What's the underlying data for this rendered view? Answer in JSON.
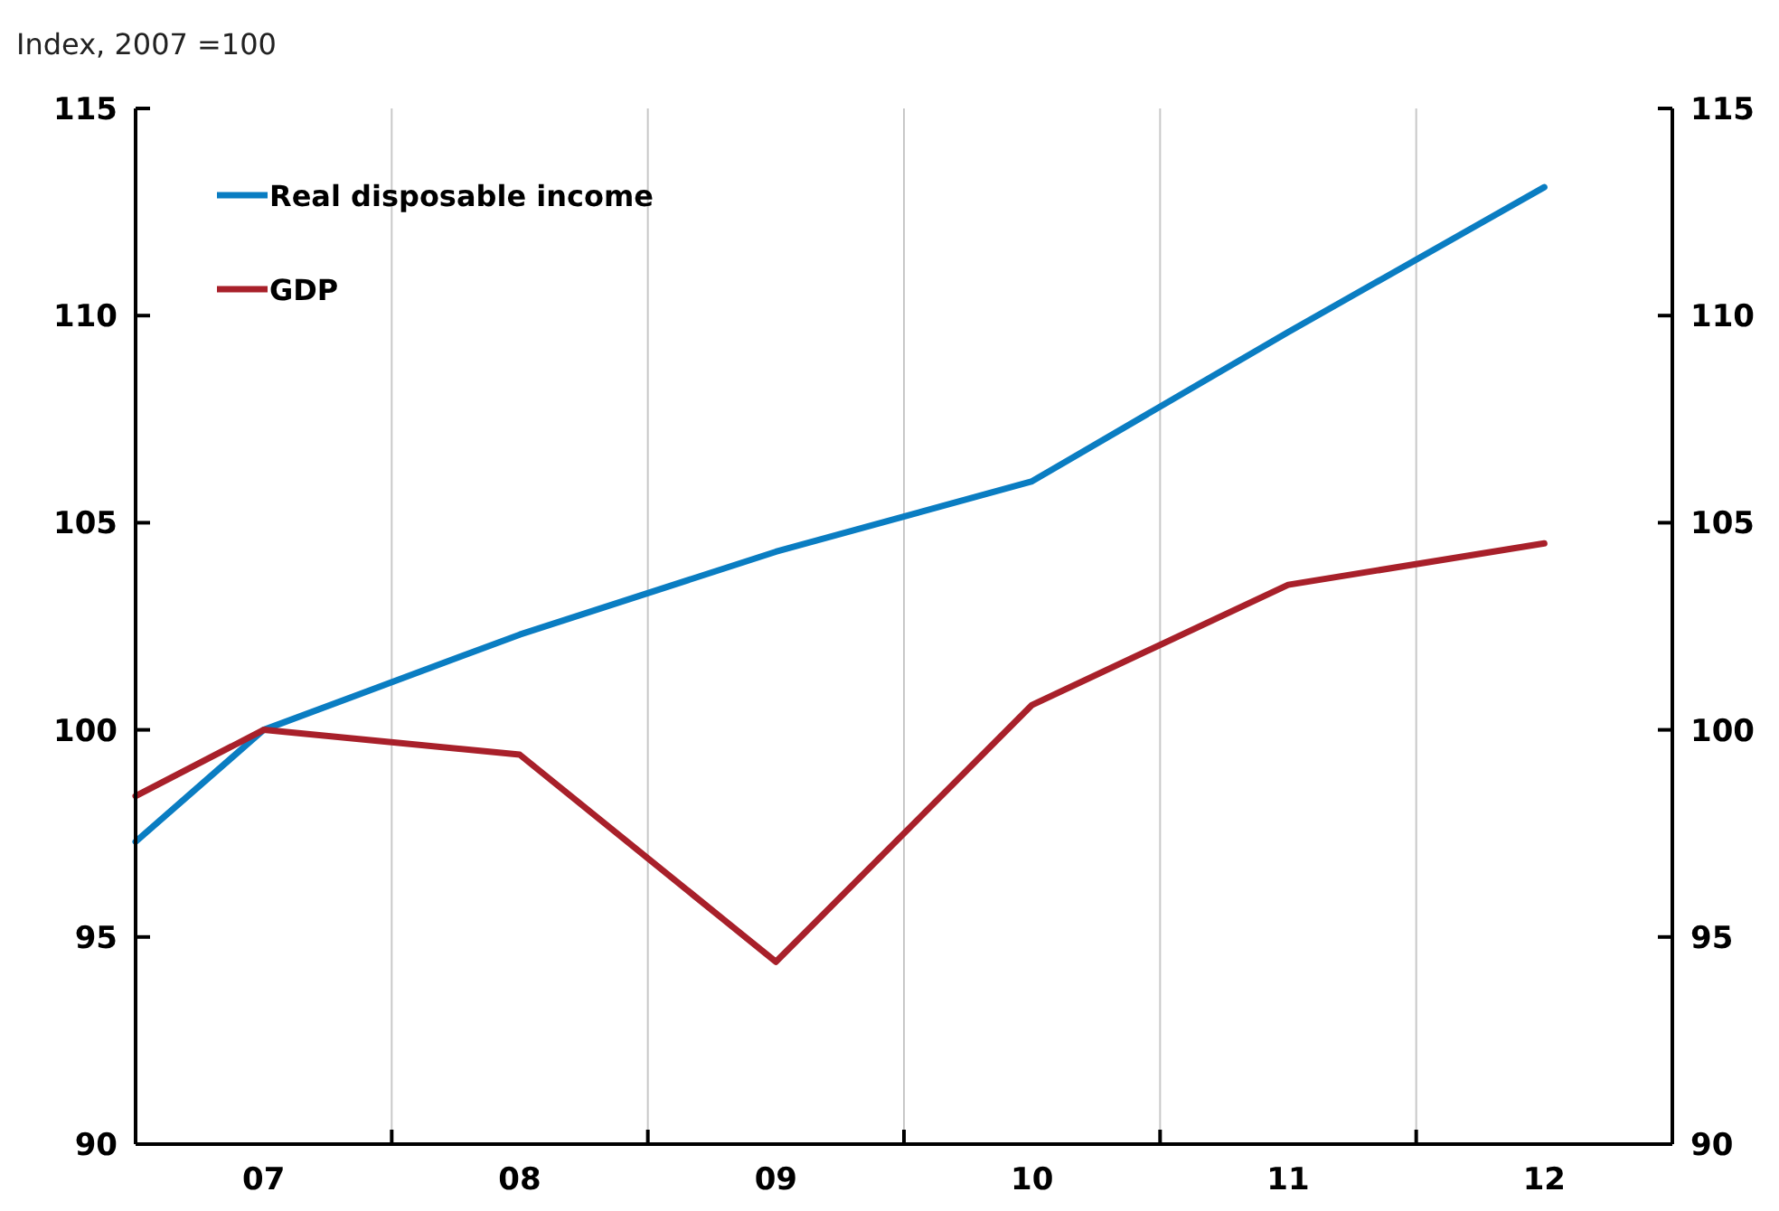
{
  "chart_data": {
    "type": "line",
    "ylabel": "Index, 2007 =100",
    "x": [
      2006.5,
      2007,
      2008,
      2009,
      2010,
      2011,
      2012
    ],
    "series": [
      {
        "name": "Real disposable income",
        "color": "#0a7dc2",
        "values": [
          97.3,
          100,
          102.3,
          104.3,
          106,
          109.6,
          113.1
        ]
      },
      {
        "name": "GDP",
        "color": "#a8202a",
        "values": [
          98.4,
          100,
          99.4,
          94.4,
          100.6,
          103.5,
          104.5
        ]
      }
    ],
    "xlim": [
      2006.5,
      2012.5
    ],
    "xticks": [
      {
        "value": 2007,
        "label": "07"
      },
      {
        "value": 2007.5,
        "label": null
      },
      {
        "value": 2008,
        "label": "08"
      },
      {
        "value": 2008.5,
        "label": null
      },
      {
        "value": 2009,
        "label": "09"
      },
      {
        "value": 2009.5,
        "label": null
      },
      {
        "value": 2010,
        "label": "10"
      },
      {
        "value": 2010.5,
        "label": null
      },
      {
        "value": 2011,
        "label": "11"
      },
      {
        "value": 2011.5,
        "label": null
      },
      {
        "value": 2012,
        "label": "12"
      }
    ],
    "ylim": [
      90,
      115
    ],
    "yticks": [
      90,
      95,
      100,
      105,
      110,
      115
    ],
    "y2lim": [
      90,
      115
    ],
    "y2ticks": [
      90,
      95,
      100,
      105,
      110,
      115
    ],
    "grid": "x",
    "legend": "top left",
    "marker": "none",
    "line_style": "solid"
  }
}
